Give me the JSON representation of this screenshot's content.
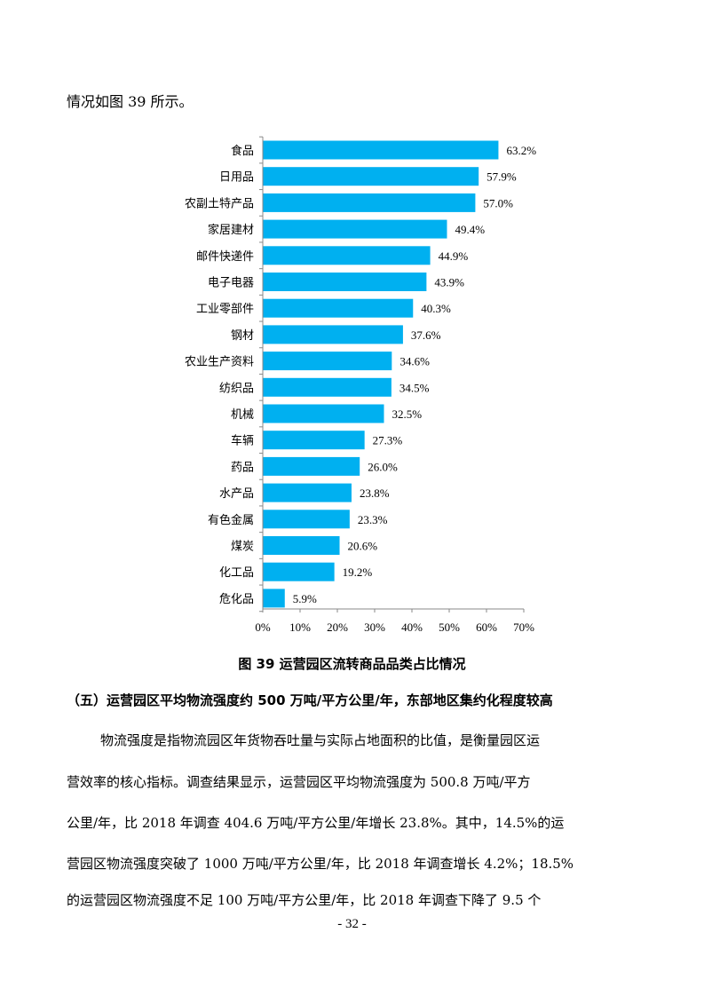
{
  "intro_text": "情况如图 39 所示。",
  "chart_data": {
    "type": "bar",
    "orientation": "horizontal",
    "categories": [
      "食品",
      "日用品",
      "农副土特产品",
      "家居建材",
      "邮件快递件",
      "电子电器",
      "工业零部件",
      "钢材",
      "农业生产资料",
      "纺织品",
      "机械",
      "车辆",
      "药品",
      "水产品",
      "有色金属",
      "煤炭",
      "化工品",
      "危化品"
    ],
    "values": [
      63.2,
      57.9,
      57.0,
      49.4,
      44.9,
      43.9,
      40.3,
      37.6,
      34.6,
      34.5,
      32.5,
      27.3,
      26.0,
      23.8,
      23.3,
      20.6,
      19.2,
      5.9
    ],
    "value_labels": [
      "63.2%",
      "57.9%",
      "57.0%",
      "49.4%",
      "44.9%",
      "43.9%",
      "40.3%",
      "37.6%",
      "34.6%",
      "34.5%",
      "32.5%",
      "27.3%",
      "26.0%",
      "23.8%",
      "23.3%",
      "20.6%",
      "19.2%",
      "5.9%"
    ],
    "x_ticks": [
      "0%",
      "10%",
      "20%",
      "30%",
      "40%",
      "50%",
      "60%",
      "70%"
    ],
    "xlim": [
      0,
      70
    ],
    "bar_color": "#00B0F0",
    "grid": false
  },
  "caption": "图 39  运营园区流转商品品类占比情况",
  "section_heading": "（五）运营园区平均物流强度约 500 万吨/平方公里/年，东部地区集约化程度较高",
  "paragraph_lines": [
    "物流强度是指物流园区年货物吞吐量与实际占地面积的比值，是衡量园区运",
    "营效率的核心指标。调查结果显示，运营园区平均物流强度为 500.8 万吨/平方",
    "公里/年，比 2018 年调查 404.6 万吨/平方公里/年增长 23.8%。其中，14.5%的运",
    "营园区物流强度突破了 1000 万吨/平方公里/年，比 2018 年调查增长 4.2%；18.5%",
    "的运营园区物流强度不足 100 万吨/平方公里/年，比 2018 年调查下降了 9.5 个"
  ],
  "page_number": "- 32 -"
}
